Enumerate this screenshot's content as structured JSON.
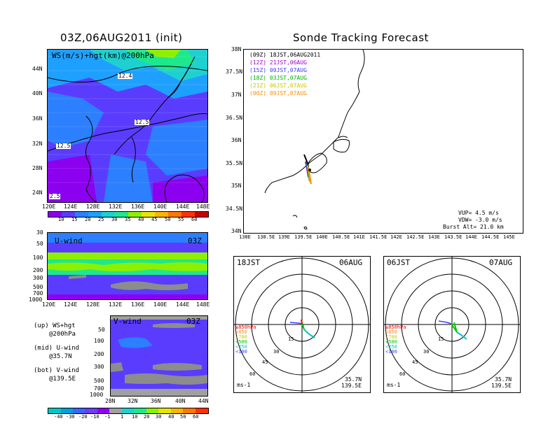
{
  "left_title": "03Z,06AUG2011 (init)",
  "right_title": "Sonde Tracking Forecast",
  "map_panel": {
    "label": "WS(m/s)+hgt(km)@200hPa",
    "lat_ticks": [
      "44N",
      "40N",
      "36N",
      "32N",
      "28N",
      "24N"
    ],
    "lon_ticks": [
      "120E",
      "124E",
      "128E",
      "132E",
      "136E",
      "140E",
      "144E",
      "148E"
    ],
    "contour_labels": [
      "12.4",
      "12.5",
      "12.5",
      "2.5"
    ],
    "colorbar_ticks": [
      "10",
      "15",
      "20",
      "25",
      "30",
      "35",
      "40",
      "45",
      "50",
      "55",
      "60"
    ],
    "colorbar_colors": [
      "#8c00f0",
      "#5a3cff",
      "#2c7fff",
      "#1ea0ff",
      "#1ed0d0",
      "#1ee88c",
      "#8cf000",
      "#e6e600",
      "#ffb400",
      "#ff7800",
      "#ff3200",
      "#c80000"
    ]
  },
  "u_panel": {
    "label": "U-wind",
    "time": "03Z",
    "p_ticks": [
      "30",
      "50",
      "100",
      "200",
      "300",
      "500",
      "700",
      "1000"
    ],
    "lon_ticks": [
      "120E",
      "124E",
      "128E",
      "132E",
      "136E",
      "140E",
      "144E",
      "148E"
    ]
  },
  "v_panel": {
    "label": "V-wind",
    "time": "03Z",
    "p_ticks": [
      "50",
      "100",
      "200",
      "300",
      "500",
      "700",
      "1000"
    ],
    "lat_ticks": [
      "28N",
      "32N",
      "36N",
      "40N",
      "44N"
    ],
    "colorbar_ticks": [
      "-40",
      "-30",
      "-20",
      "-10",
      "-1",
      "1",
      "10",
      "20",
      "30",
      "40",
      "50",
      "60"
    ],
    "colorbar_colors": [
      "#00c8c8",
      "#00a0dc",
      "#3c64ff",
      "#6e3cff",
      "#8c00f0",
      "#a0a0a0",
      "#1ed0d0",
      "#1ee88c",
      "#8cf000",
      "#e6e600",
      "#ffb400",
      "#ff7800",
      "#ff3200"
    ]
  },
  "legend_notes": {
    "up": [
      "(up) WS+hgt",
      "@200hPa"
    ],
    "mid": [
      "(mid) U-wind",
      "@35.7N"
    ],
    "bot": [
      "(bot) V-wind",
      "@139.5E"
    ]
  },
  "track_map": {
    "lat_ticks": [
      "38N",
      "37.5N",
      "37N",
      "36.5N",
      "36N",
      "35.5N",
      "35N",
      "34.5N",
      "34N"
    ],
    "lon_ticks": [
      "138E",
      "138.5E",
      "139E",
      "139.5E",
      "140E",
      "140.5E",
      "141E",
      "141.5E",
      "142E",
      "142.5E",
      "143E",
      "143.5E",
      "144E",
      "144.5E",
      "145E"
    ],
    "legend": [
      {
        "text": "(09Z)  18JST,06AUG2011",
        "color": "#000000"
      },
      {
        "text": "(12Z)  21JST,06AUG",
        "color": "#a000c8"
      },
      {
        "text": "(15Z)  00JST,07AUG",
        "color": "#3c3cff"
      },
      {
        "text": "(18Z)  03JST,07AUG",
        "color": "#00b400"
      },
      {
        "text": "(21Z)  06JST,07AUG",
        "color": "#c8c800"
      },
      {
        "text": "(00Z)  09JST,07AUG",
        "color": "#ff8c00"
      }
    ],
    "info": [
      "VUP=  4.5 m/s",
      "VDW= -3.0 m/s",
      "Burst Alt= 21.0 km"
    ]
  },
  "hodo_left": {
    "time_label": "18JST",
    "date_label": "06AUG",
    "ring_labels": [
      "15",
      "30",
      "45",
      "60"
    ],
    "levels": [
      {
        "text": "≥850hPa",
        "color": "#ff0000"
      },
      {
        "text": "<850",
        "color": "#ff8c00"
      },
      {
        "text": "<700",
        "color": "#c8c800"
      },
      {
        "text": "<500",
        "color": "#00c800"
      },
      {
        "text": "<250",
        "color": "#00c8c8"
      },
      {
        "text": "<100",
        "color": "#3c3cff"
      }
    ],
    "unit": "ms-1",
    "lat": "35.7N",
    "lon": "139.5E"
  },
  "hodo_right": {
    "time_label": "06JST",
    "date_label": "07AUG",
    "ring_labels": [
      "15",
      "30",
      "45",
      "60"
    ],
    "levels": [
      {
        "text": "≥850hPa",
        "color": "#ff0000"
      },
      {
        "text": "<850",
        "color": "#ff8c00"
      },
      {
        "text": "<700",
        "color": "#c8c800"
      },
      {
        "text": "<500",
        "color": "#00c800"
      },
      {
        "text": "<250",
        "color": "#00c8c8"
      },
      {
        "text": "<100",
        "color": "#3c3cff"
      }
    ],
    "unit": "ms-1",
    "lat": "35.7N",
    "lon": "139.5E"
  }
}
